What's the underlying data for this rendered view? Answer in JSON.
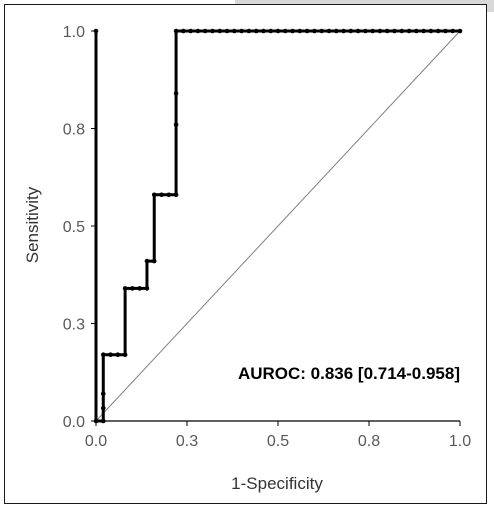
{
  "chart_data": {
    "type": "line",
    "title": "",
    "xlabel": "1-Specificity",
    "ylabel": "Sensitivity",
    "xlim": [
      0,
      1
    ],
    "ylim": [
      0,
      1
    ],
    "x_ticks": [
      0.0,
      0.25,
      0.5,
      0.75,
      1.0
    ],
    "y_ticks": [
      0.0,
      0.25,
      0.5,
      0.75,
      1.0
    ],
    "x_tick_labels": [
      "0.0",
      "0.3",
      "0.5",
      "0.8",
      "1.0"
    ],
    "y_tick_labels": [
      "0.0",
      "0.3",
      "0.5",
      "0.8",
      "1.0"
    ],
    "grid": false,
    "annotation": "AUROC: 0.836 [0.714-0.958]",
    "series": [
      {
        "role": "roc",
        "style": "step-with-markers",
        "points": [
          [
            0.0,
            1.0
          ],
          [
            0.0,
            0.0
          ],
          [
            0.02,
            0.0
          ],
          [
            0.02,
            0.033
          ],
          [
            0.02,
            0.07
          ],
          [
            0.02,
            0.17
          ],
          [
            0.04,
            0.17
          ],
          [
            0.06,
            0.17
          ],
          [
            0.08,
            0.17
          ],
          [
            0.08,
            0.34
          ],
          [
            0.1,
            0.34
          ],
          [
            0.12,
            0.34
          ],
          [
            0.14,
            0.34
          ],
          [
            0.14,
            0.41
          ],
          [
            0.16,
            0.41
          ],
          [
            0.16,
            0.58
          ],
          [
            0.18,
            0.58
          ],
          [
            0.2,
            0.58
          ],
          [
            0.22,
            0.58
          ],
          [
            0.22,
            0.76
          ],
          [
            0.22,
            0.84
          ],
          [
            0.22,
            1.0
          ],
          [
            0.24,
            1.0
          ],
          [
            0.26,
            1.0
          ],
          [
            0.28,
            1.0
          ],
          [
            0.3,
            1.0
          ],
          [
            0.32,
            1.0
          ],
          [
            0.34,
            1.0
          ],
          [
            0.36,
            1.0
          ],
          [
            0.38,
            1.0
          ],
          [
            0.4,
            1.0
          ],
          [
            0.42,
            1.0
          ],
          [
            0.44,
            1.0
          ],
          [
            0.46,
            1.0
          ],
          [
            0.48,
            1.0
          ],
          [
            0.5,
            1.0
          ],
          [
            0.52,
            1.0
          ],
          [
            0.54,
            1.0
          ],
          [
            0.56,
            1.0
          ],
          [
            0.58,
            1.0
          ],
          [
            0.6,
            1.0
          ],
          [
            0.62,
            1.0
          ],
          [
            0.64,
            1.0
          ],
          [
            0.66,
            1.0
          ],
          [
            0.68,
            1.0
          ],
          [
            0.7,
            1.0
          ],
          [
            0.72,
            1.0
          ],
          [
            0.74,
            1.0
          ],
          [
            0.76,
            1.0
          ],
          [
            0.78,
            1.0
          ],
          [
            0.8,
            1.0
          ],
          [
            0.82,
            1.0
          ],
          [
            0.84,
            1.0
          ],
          [
            0.86,
            1.0
          ],
          [
            0.88,
            1.0
          ],
          [
            0.9,
            1.0
          ],
          [
            0.92,
            1.0
          ],
          [
            0.94,
            1.0
          ],
          [
            0.96,
            1.0
          ],
          [
            0.98,
            1.0
          ],
          [
            1.0,
            1.0
          ]
        ]
      },
      {
        "role": "reference",
        "style": "thin-diagonal",
        "points": [
          [
            0.0,
            0.0
          ],
          [
            1.0,
            1.0
          ]
        ]
      }
    ],
    "colors": {
      "roc": "#000000",
      "reference": "#808080",
      "axis": "#000000"
    }
  }
}
